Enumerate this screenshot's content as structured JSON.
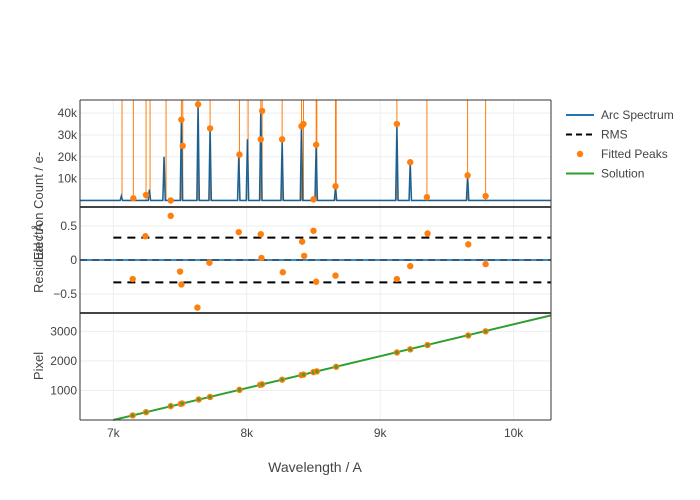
{
  "colors": {
    "arc": "#1f77b4",
    "rms": "#000000",
    "peaks": "#ff7f0e",
    "solution": "#2ca02c",
    "grid": "#eeeeee",
    "text": "#444444"
  },
  "chart_data": {
    "type": "line",
    "x_label": "Wavelength / A",
    "x_range": [
      6750,
      10280
    ],
    "x_ticks": [
      {
        "value": 7000,
        "label": "7k"
      },
      {
        "value": 8000,
        "label": "8k"
      },
      {
        "value": 9000,
        "label": "9k"
      },
      {
        "value": 10000,
        "label": "10k"
      }
    ],
    "legend": [
      {
        "key": "arc",
        "label": "Arc Spectrum",
        "symbol": "line"
      },
      {
        "key": "rms",
        "label": "RMS",
        "symbol": "dash"
      },
      {
        "key": "peaks",
        "label": "Fitted Peaks",
        "symbol": "dot"
      },
      {
        "key": "solution",
        "label": "Solution",
        "symbol": "line"
      }
    ],
    "legend_position": "top-right",
    "panels": [
      {
        "id": "spectrum",
        "y_range": [
          -3000,
          46000
        ],
        "y_ticks": [
          {
            "value": 10000,
            "label": "10k"
          },
          {
            "value": 20000,
            "label": "20k"
          },
          {
            "value": 30000,
            "label": "30k"
          },
          {
            "value": 40000,
            "label": "40k"
          }
        ],
        "arc_lines": [
          {
            "x": 7060,
            "h": 2000
          },
          {
            "x": 7270,
            "h": 5000
          },
          {
            "x": 7380,
            "h": 20000
          },
          {
            "x": 7510,
            "h": 37000
          },
          {
            "x": 7635,
            "h": 44000
          },
          {
            "x": 7725,
            "h": 33000
          },
          {
            "x": 7940,
            "h": 20000
          },
          {
            "x": 8005,
            "h": 28000
          },
          {
            "x": 8105,
            "h": 41000
          },
          {
            "x": 8265,
            "h": 27000
          },
          {
            "x": 8410,
            "h": 35000
          },
          {
            "x": 8520,
            "h": 25000
          },
          {
            "x": 8665,
            "h": 6000
          },
          {
            "x": 9125,
            "h": 34000
          },
          {
            "x": 9225,
            "h": 17000
          },
          {
            "x": 9655,
            "h": 11000
          }
        ],
        "peak_lines_x": [
          7065,
          7150,
          7245,
          7275,
          7395,
          7510,
          7520,
          7635,
          7725,
          7945,
          8010,
          8105,
          8115,
          8265,
          8410,
          8425,
          8520,
          8525,
          8665,
          8670,
          9125,
          9350,
          9655,
          9790
        ],
        "fitted_peaks": [
          {
            "x": 7150,
            "y": 1000
          },
          {
            "x": 7245,
            "y": 2500
          },
          {
            "x": 7430,
            "y": 0
          },
          {
            "x": 7510,
            "y": 37000
          },
          {
            "x": 7520,
            "y": 25000
          },
          {
            "x": 7635,
            "y": 44000
          },
          {
            "x": 7725,
            "y": 33000
          },
          {
            "x": 7945,
            "y": 21000
          },
          {
            "x": 8105,
            "y": 28000
          },
          {
            "x": 8115,
            "y": 41000
          },
          {
            "x": 8265,
            "y": 28000
          },
          {
            "x": 8410,
            "y": 34000
          },
          {
            "x": 8425,
            "y": 35000
          },
          {
            "x": 8500,
            "y": 500
          },
          {
            "x": 8520,
            "y": 25500
          },
          {
            "x": 8665,
            "y": 6500
          },
          {
            "x": 9125,
            "y": 35000
          },
          {
            "x": 9225,
            "y": 17500
          },
          {
            "x": 9350,
            "y": 1500
          },
          {
            "x": 9655,
            "y": 11500
          },
          {
            "x": 9790,
            "y": 2000
          }
        ]
      },
      {
        "id": "residual",
        "y_range": [
          -0.78,
          0.78
        ],
        "y_ticks": [
          {
            "value": 0.5,
            "label": "0.5"
          },
          {
            "value": 0,
            "label": "0"
          },
          {
            "value": -0.5,
            "label": "−0.5"
          }
        ],
        "rms": 0.33,
        "residuals": [
          {
            "x": 7145,
            "y": -0.28
          },
          {
            "x": 7240,
            "y": 0.35
          },
          {
            "x": 7430,
            "y": 0.65
          },
          {
            "x": 7500,
            "y": -0.17
          },
          {
            "x": 7510,
            "y": -0.36
          },
          {
            "x": 7630,
            "y": -0.7
          },
          {
            "x": 7720,
            "y": -0.04
          },
          {
            "x": 7940,
            "y": 0.41
          },
          {
            "x": 8105,
            "y": 0.38
          },
          {
            "x": 8110,
            "y": 0.03
          },
          {
            "x": 8270,
            "y": -0.18
          },
          {
            "x": 8415,
            "y": 0.27
          },
          {
            "x": 8430,
            "y": 0.06
          },
          {
            "x": 8500,
            "y": 0.43
          },
          {
            "x": 8520,
            "y": -0.32
          },
          {
            "x": 8665,
            "y": -0.23
          },
          {
            "x": 9125,
            "y": -0.28
          },
          {
            "x": 9225,
            "y": -0.09
          },
          {
            "x": 9355,
            "y": 0.39
          },
          {
            "x": 9660,
            "y": 0.23
          },
          {
            "x": 9790,
            "y": -0.06
          }
        ]
      },
      {
        "id": "pixel",
        "y_label": "Pixel",
        "y_range": [
          0,
          3620
        ],
        "y_ticks": [
          {
            "value": 1000,
            "label": "1000"
          },
          {
            "value": 2000,
            "label": "2000"
          },
          {
            "value": 3000,
            "label": "3000"
          }
        ],
        "solution_line": [
          {
            "x": 7000,
            "y": 0
          },
          {
            "x": 10280,
            "y": 3540
          }
        ],
        "pixel_points": [
          {
            "x": 7145,
            "y": 155
          },
          {
            "x": 7245,
            "y": 265
          },
          {
            "x": 7430,
            "y": 470
          },
          {
            "x": 7505,
            "y": 545
          },
          {
            "x": 7515,
            "y": 560
          },
          {
            "x": 7640,
            "y": 695
          },
          {
            "x": 7725,
            "y": 780
          },
          {
            "x": 7945,
            "y": 1020
          },
          {
            "x": 8100,
            "y": 1190
          },
          {
            "x": 8115,
            "y": 1205
          },
          {
            "x": 8265,
            "y": 1365
          },
          {
            "x": 8410,
            "y": 1520
          },
          {
            "x": 8425,
            "y": 1535
          },
          {
            "x": 8500,
            "y": 1620
          },
          {
            "x": 8525,
            "y": 1645
          },
          {
            "x": 8670,
            "y": 1800
          },
          {
            "x": 9125,
            "y": 2285
          },
          {
            "x": 9225,
            "y": 2390
          },
          {
            "x": 9355,
            "y": 2535
          },
          {
            "x": 9660,
            "y": 2860
          },
          {
            "x": 9790,
            "y": 3000
          }
        ]
      }
    ],
    "shared_y_label": "Residual / Å",
    "shared_y_label_overlap": "Electron Count / e-"
  }
}
